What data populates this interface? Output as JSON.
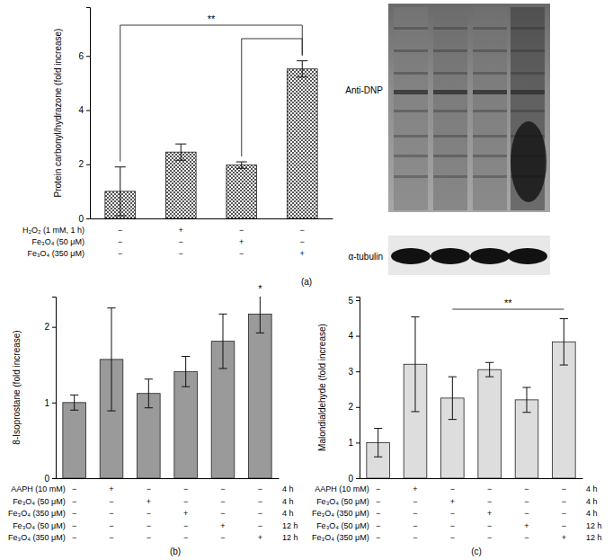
{
  "chart_data": [
    {
      "type": "bar",
      "panel": "(a)",
      "y_label": "Protein carbonyl/hydrazone (fold increase)",
      "categories": [
        null,
        null,
        null,
        null
      ],
      "values": [
        1.0,
        2.45,
        1.97,
        5.52
      ],
      "errors": [
        0.9,
        0.3,
        0.12,
        0.3
      ],
      "color": "#555555",
      "ylim": [
        0,
        7.8
      ],
      "yticks": [
        0,
        2,
        4,
        6
      ],
      "brackets": [
        {
          "from": 0,
          "to": 3,
          "label": "**"
        },
        {
          "from": 2,
          "to": 3
        }
      ],
      "condition_table": {
        "rows": [
          {
            "label": "H₂O₂ (1 mM, 1 h)",
            "marks": [
              "−",
              "+",
              "−",
              "−"
            ]
          },
          {
            "label": "Fe₃O₄ (50 μM)",
            "marks": [
              "−",
              "−",
              "+",
              "−"
            ]
          },
          {
            "label": "Fe₃O₄ (350 μM)",
            "marks": [
              "−",
              "−",
              "−",
              "+"
            ]
          }
        ]
      },
      "blot": {
        "labels": [
          "Anti-DNP",
          "α-tubulin"
        ]
      }
    },
    {
      "type": "bar",
      "panel": "(b)",
      "y_label": "8-Isoprostane (fold increase)",
      "categories": [
        null,
        null,
        null,
        null,
        null,
        null
      ],
      "values": [
        1.0,
        1.57,
        1.12,
        1.41,
        1.81,
        2.17
      ],
      "errors": [
        0.1,
        0.68,
        0.19,
        0.2,
        0.36,
        0.25
      ],
      "color": "#9a9a9a",
      "ylim": [
        0,
        2.4
      ],
      "yticks": [
        0,
        1,
        2
      ],
      "annotations": [
        {
          "text": "*",
          "category": 5
        }
      ],
      "condition_table": {
        "rows": [
          {
            "label": "AAPH (10 mM)",
            "marks": [
              "−",
              "+",
              "−",
              "−",
              "−",
              "−"
            ],
            "suffix": "4 h"
          },
          {
            "label": "Fe₃O₄ (50 μM)",
            "marks": [
              "−",
              "−",
              "+",
              "−",
              "−",
              "−"
            ],
            "suffix": "4 h"
          },
          {
            "label": "Fe₃O₄ (350 μM)",
            "marks": [
              "−",
              "−",
              "−",
              "+",
              "−",
              "−"
            ],
            "suffix": "4 h"
          },
          {
            "label": "Fe₃O₄ (50 μM)",
            "marks": [
              "−",
              "−",
              "−",
              "−",
              "+",
              "−"
            ],
            "suffix": "12 h"
          },
          {
            "label": "Fe₃O₄ (350 μM)",
            "marks": [
              "−",
              "−",
              "−",
              "−",
              "−",
              "+"
            ],
            "suffix": "12 h"
          }
        ]
      }
    },
    {
      "type": "bar",
      "panel": "(c)",
      "y_label": "Malondialdehyde (fold increase)",
      "categories": [
        null,
        null,
        null,
        null,
        null,
        null
      ],
      "values": [
        1.0,
        3.2,
        2.25,
        3.05,
        2.2,
        3.83
      ],
      "errors": [
        0.4,
        1.33,
        0.6,
        0.2,
        0.35,
        0.65
      ],
      "color": "#dddddd",
      "ylim": [
        0,
        5.1
      ],
      "yticks": [
        0,
        1,
        2,
        3,
        4,
        5
      ],
      "brackets": [
        {
          "from": 2,
          "to": 5,
          "label": "**"
        }
      ],
      "condition_table": {
        "rows": [
          {
            "label": "AAPH (10 mM)",
            "marks": [
              "−",
              "+",
              "−",
              "−",
              "−",
              "−"
            ],
            "suffix": "4 h"
          },
          {
            "label": "Fe₃O₄ (50 μM)",
            "marks": [
              "−",
              "−",
              "+",
              "−",
              "−",
              "−"
            ],
            "suffix": "4 h"
          },
          {
            "label": "Fe₃O₄ (350 μM)",
            "marks": [
              "−",
              "−",
              "−",
              "+",
              "−",
              "−"
            ],
            "suffix": "4 h"
          },
          {
            "label": "Fe₃O₄ (50 μM)",
            "marks": [
              "−",
              "−",
              "−",
              "−",
              "+",
              "−"
            ],
            "suffix": "12 h"
          },
          {
            "label": "Fe₃O₄ (350 μM)",
            "marks": [
              "−",
              "−",
              "−",
              "−",
              "−",
              "+"
            ],
            "suffix": "12 h"
          }
        ]
      }
    }
  ]
}
